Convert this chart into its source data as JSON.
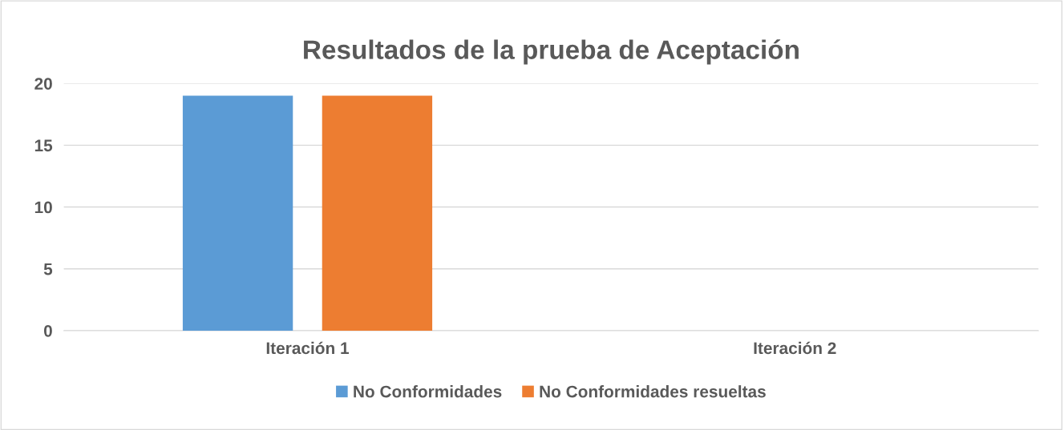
{
  "chart_data": {
    "type": "bar",
    "title": "Resultados de la prueba de Aceptación",
    "categories": [
      "Iteración 1",
      "Iteración 2"
    ],
    "series": [
      {
        "name": "No Conformidades",
        "color": "#5b9bd5",
        "values": [
          19,
          0
        ]
      },
      {
        "name": "No Conformidades resueltas",
        "color": "#ed7d31",
        "values": [
          19,
          0
        ]
      }
    ],
    "ylim": [
      0,
      20
    ],
    "yticks": [
      0,
      5,
      10,
      15,
      20
    ],
    "grid": "y",
    "legend": "bottom"
  }
}
